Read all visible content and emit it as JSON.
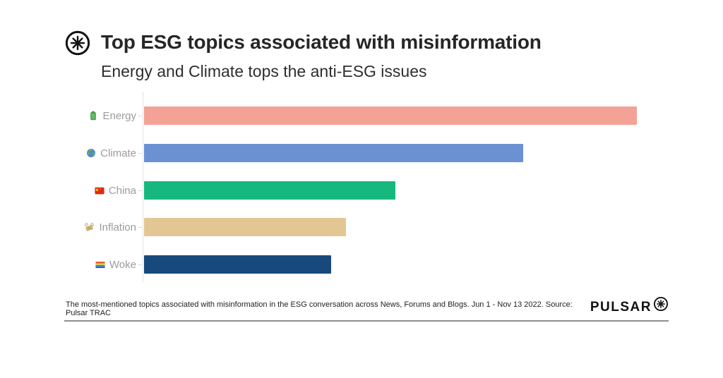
{
  "header": {
    "title": "Top ESG topics associated with misinformation",
    "subtitle": "Energy and Climate tops the anti-ESG issues",
    "logo_icon": "pulsar-asterisk-icon"
  },
  "chart_data": {
    "type": "bar",
    "orientation": "horizontal",
    "title": "Top ESG topics associated with misinformation",
    "xlabel": "",
    "ylabel": "",
    "grid": false,
    "legend": false,
    "value_axis_visible": false,
    "note": "No numeric axis shown; values are bar lengths as percent of the longest bar (Energy = 100)",
    "categories": [
      "Energy",
      "Climate",
      "China",
      "Inflation",
      "Woke"
    ],
    "icons": [
      "battery-icon",
      "globe-icon",
      "china-flag-icon",
      "money-with-wings-icon",
      "rainbow-flag-icon"
    ],
    "values_pct_of_max": [
      100,
      77,
      51,
      41,
      38
    ],
    "colors": [
      "#F4A295",
      "#6B91D3",
      "#17B87E",
      "#E2C795",
      "#17497D"
    ]
  },
  "footer": {
    "caption": "The most-mentioned topics associated with misinformation in the ESG conversation across News, Forums and Blogs. Jun 1 - Nov 13 2022. Source: Pulsar TRAC",
    "brand": "PULSAR",
    "brand_icon": "pulsar-asterisk-icon"
  }
}
